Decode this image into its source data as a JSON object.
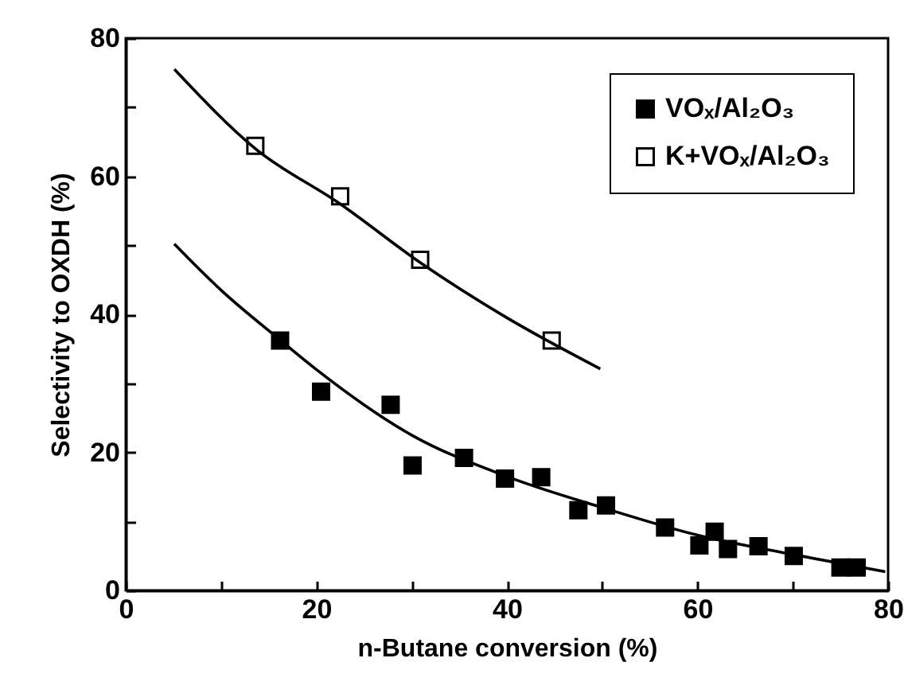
{
  "chart_data": {
    "type": "scatter",
    "xlabel": "n-Butane conversion (%)",
    "ylabel": "Selectivity to OXDH (%)",
    "xlim": [
      0,
      80
    ],
    "ylim": [
      0,
      80
    ],
    "xticks": [
      0,
      {
        "value": 10,
        "label": null
      },
      20,
      {
        "value": 30,
        "label": null
      },
      40,
      {
        "value": 50,
        "label": null
      },
      60,
      {
        "value": 70,
        "label": null
      },
      80
    ],
    "yticks": [
      0,
      {
        "value": 10,
        "label": null
      },
      20,
      {
        "value": 30,
        "label": null
      },
      40,
      {
        "value": 50,
        "label": null
      },
      60,
      {
        "value": 70,
        "label": null
      },
      80
    ],
    "grid": false,
    "legend": "top right",
    "marker": "square",
    "series": [
      {
        "name": "VOₓ/Al₂O₃",
        "color": "#000000",
        "x": [
          16.2,
          20.5,
          27.8,
          30.1,
          35.5,
          39.8,
          43.6,
          47.5,
          50.4,
          56.6,
          60.2,
          61.8,
          63.2,
          66.4,
          70.1,
          75.0,
          76.7
        ],
        "values": [
          36.2,
          28.8,
          26.9,
          18.1,
          19.2,
          16.2,
          16.4,
          11.6,
          12.3,
          9.1,
          6.5,
          8.5,
          6.0,
          6.4,
          5.0,
          3.3,
          3.3
        ]
      },
      {
        "name": "K+VOₓ/Al₂O₃",
        "color": "#ffffff",
        "x": [
          13.6,
          22.5,
          30.9,
          44.7
        ],
        "values": [
          64.4,
          57.1,
          47.9,
          36.2
        ]
      },
      {
        "type": "line",
        "color": "#000000",
        "marker": "none",
        "x": [
          5.1,
          10,
          16,
          20,
          30,
          40,
          50,
          60,
          70,
          79.7
        ],
        "values": [
          50.2,
          43.5,
          36.5,
          32,
          22.5,
          16.5,
          12,
          8,
          5.2,
          2.7
        ]
      },
      {
        "type": "line",
        "color": "#000000",
        "marker": "none",
        "x": [
          5.1,
          13.6,
          22.5,
          30.9,
          40,
          49.8
        ],
        "values": [
          75.5,
          64,
          56,
          47.5,
          39.5,
          32.1
        ]
      }
    ]
  }
}
